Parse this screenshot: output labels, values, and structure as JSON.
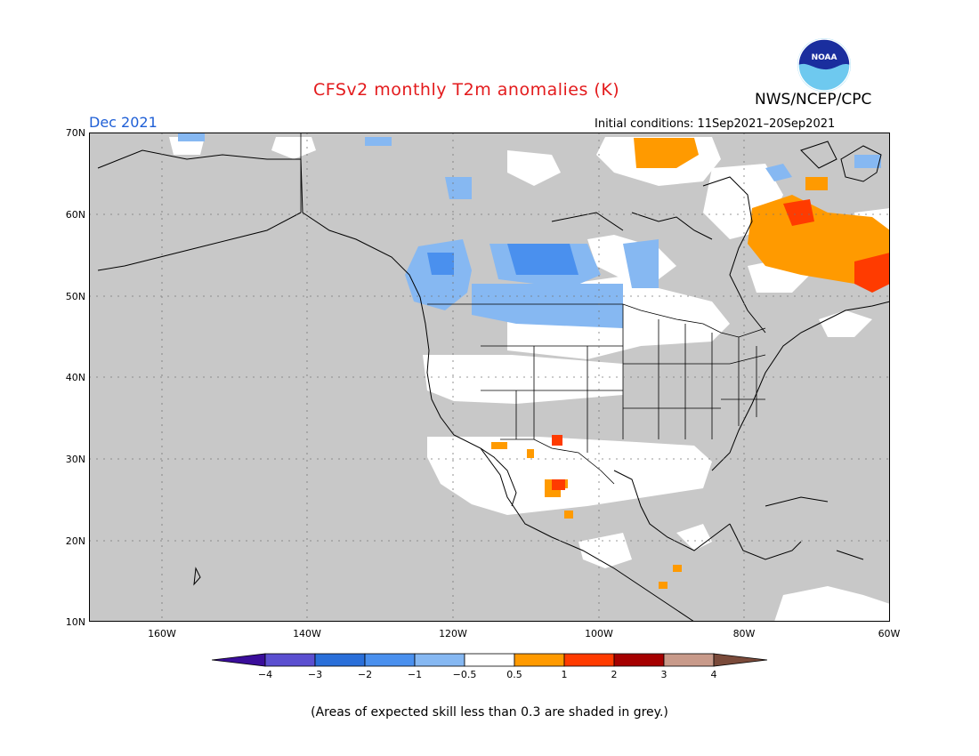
{
  "header": {
    "title": "CFSv2 monthly T2m anomalies (K)",
    "agency": "NWS/NCEP/CPC",
    "valid_month": "Dec 2021",
    "initial_conditions": "Initial conditions: 11Sep2021–20Sep2021",
    "logo_text": "NOAA"
  },
  "map": {
    "lat_labels": [
      "70N",
      "60N",
      "50N",
      "40N",
      "30N",
      "20N",
      "10N"
    ],
    "lon_labels": [
      "160W",
      "140W",
      "120W",
      "100W",
      "80W",
      "60W"
    ],
    "no_skill_color": "#c8c8c8",
    "land_color": "#ffffff"
  },
  "colorbar": {
    "labels": [
      "−4",
      "−3",
      "−2",
      "−1",
      "−0.5",
      "0.5",
      "1",
      "2",
      "3",
      "4"
    ],
    "colors": [
      "#3a0d9a",
      "#5b4fd0",
      "#2a6fd9",
      "#4a90ee",
      "#86b8f2",
      "#ffffff",
      "#ff9a00",
      "#ff3b00",
      "#a50000",
      "#c89a8a",
      "#7a4a3a"
    ]
  },
  "footnote": "(Areas of expected skill less than 0.3 are shaded in grey.)"
}
